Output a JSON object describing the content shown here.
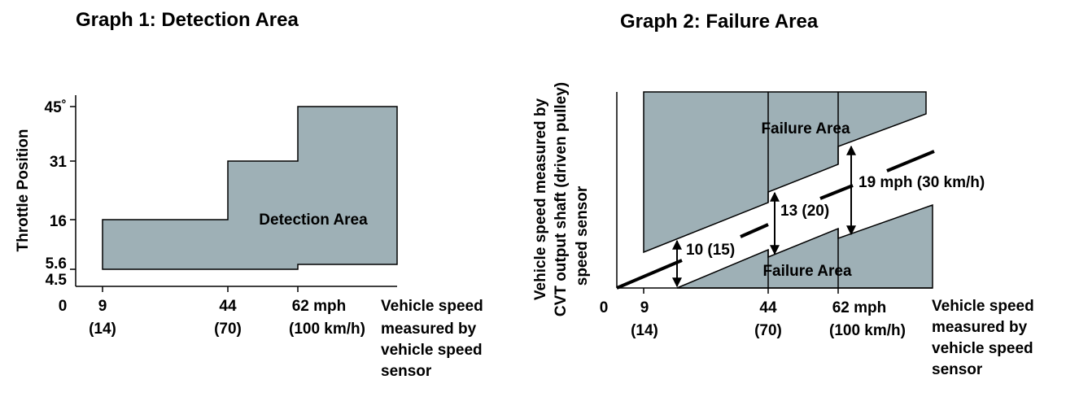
{
  "graph1": {
    "title": "Graph 1: Detection Area",
    "y_axis_label": "Throttle Position",
    "y_ticks": [
      "45˚",
      "31",
      "16",
      "5.6",
      "4.5"
    ],
    "origin": "0",
    "x_ticks": [
      {
        "top": "9",
        "bottom": "(14)"
      },
      {
        "top": "44",
        "bottom": "(70)"
      },
      {
        "top": "62 mph",
        "bottom": "(100 km/h)"
      }
    ],
    "x_axis_label": [
      "Vehicle speed",
      "measured by",
      "vehicle speed",
      "sensor"
    ],
    "area_label": "Detection Area",
    "colors": {
      "area": "#9eb0b6",
      "line": "#000000"
    }
  },
  "graph2": {
    "title": "Graph 2: Failure Area",
    "y_axis_label": [
      "Vehicle speed measured by",
      "CVT output shaft (driven pulley)",
      "speed sensor"
    ],
    "origin": "0",
    "x_ticks": [
      {
        "top": "9",
        "bottom": "(14)"
      },
      {
        "top": "44",
        "bottom": "(70)"
      },
      {
        "top": "62 mph",
        "bottom": "(100 km/h)"
      }
    ],
    "x_axis_label": [
      "Vehicle speed",
      "measured by",
      "vehicle speed",
      "sensor"
    ],
    "area_label_upper": "Failure Area",
    "area_label_lower": "Failure Area",
    "band_labels": [
      "10 (15)",
      "13 (20)",
      "19 mph (30 km/h)"
    ],
    "colors": {
      "area": "#9eb0b6",
      "line": "#000000"
    }
  }
}
